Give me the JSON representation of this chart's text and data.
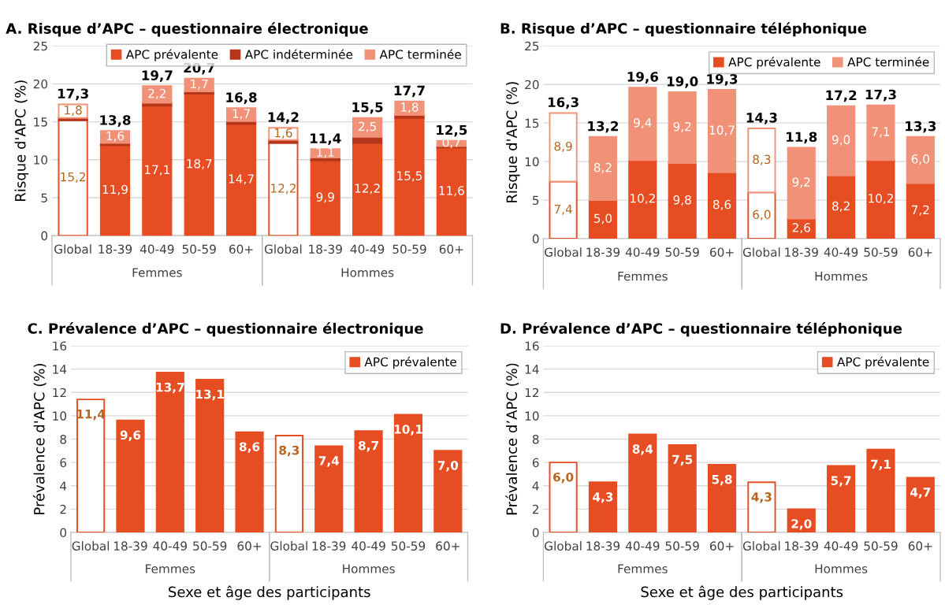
{
  "chart_data": [
    {
      "type": "bar",
      "stacked": true,
      "title": "A. Risque d’APC – questionnaire électronique",
      "ylabel": "Risque d'APC (%)",
      "categories": [
        "Global",
        "18-39",
        "40-49",
        "50-59",
        "60+",
        "Global",
        "18-39",
        "40-49",
        "50-59",
        "60+"
      ],
      "annotations": [
        "Femmes",
        "Hommes"
      ],
      "ylim": [
        0,
        25
      ],
      "yticks": [
        0,
        5,
        10,
        15,
        20,
        25
      ],
      "grid": "y",
      "legend": "top right",
      "series": [
        {
          "name": "APC prévalente",
          "color": "#e64d22",
          "colors": [
            "#ffffff",
            "#e64d22",
            "#e64d22",
            "#e64d22",
            "#e64d22",
            "#ffffff",
            "#e64d22",
            "#e64d22",
            "#e64d22",
            "#e64d22"
          ],
          "values": [
            15.2,
            11.9,
            17.1,
            18.7,
            14.7,
            12.2,
            9.9,
            12.2,
            15.5,
            11.6
          ],
          "value_labels": [
            "15,2",
            "11,9",
            "17,1",
            "18,7",
            "14,7",
            "12,2",
            "9,9",
            "12,2",
            "15,5",
            "11,6"
          ]
        },
        {
          "name": "APC indéterminée",
          "color": "#b5361a",
          "values": [
            0.3,
            0.3,
            0.4,
            0.3,
            0.4,
            0.4,
            0.4,
            0.8,
            0.4,
            0.2
          ]
        },
        {
          "name": "APC terminée",
          "color": "#f19278",
          "colors": [
            "#ffffff",
            "#f19278",
            "#f19278",
            "#f19278",
            "#f19278",
            "#ffffff",
            "#f19278",
            "#f19278",
            "#f19278",
            "#f19278"
          ],
          "values": [
            1.8,
            1.6,
            2.2,
            1.7,
            1.7,
            1.6,
            1.1,
            2.5,
            1.8,
            0.7
          ],
          "value_labels": [
            "1,8",
            "1,6",
            "2,2",
            "1,7",
            "1,7",
            "1,6",
            "1,1",
            "2,5",
            "1,8",
            "0,7"
          ]
        }
      ],
      "totals": [
        "17,3",
        "13,8",
        "19,7",
        "20,7",
        "16,8",
        "14,2",
        "11,4",
        "15,5",
        "17,7",
        "12,5"
      ]
    },
    {
      "type": "bar",
      "stacked": true,
      "title": "B. Risque d’APC – questionnaire téléphonique",
      "ylabel": "Risque d'APC (%)",
      "categories": [
        "Global",
        "18-39",
        "40-49",
        "50-59",
        "60+",
        "Global",
        "18-39",
        "40-49",
        "50-59",
        "60+"
      ],
      "annotations": [
        "Femmes",
        "Hommes"
      ],
      "ylim": [
        0,
        25
      ],
      "yticks": [
        0,
        5,
        10,
        15,
        20,
        25
      ],
      "grid": "y",
      "legend": "top right",
      "series": [
        {
          "name": "APC prévalente",
          "color": "#e64d22",
          "colors": [
            "#ffffff",
            "#e64d22",
            "#e64d22",
            "#e64d22",
            "#e64d22",
            "#ffffff",
            "#e64d22",
            "#e64d22",
            "#e64d22",
            "#e64d22"
          ],
          "values": [
            7.4,
            5.0,
            10.2,
            9.8,
            8.6,
            6.0,
            2.6,
            8.2,
            10.2,
            7.2
          ],
          "value_labels": [
            "7,4",
            "5,0",
            "10,2",
            "9,8",
            "8,6",
            "6,0",
            "2,6",
            "8,2",
            "10,2",
            "7,2"
          ]
        },
        {
          "name": "APC terminée",
          "color": "#f19278",
          "colors": [
            "#ffffff",
            "#f19278",
            "#f19278",
            "#f19278",
            "#f19278",
            "#ffffff",
            "#f19278",
            "#f19278",
            "#f19278",
            "#f19278"
          ],
          "values": [
            8.9,
            8.2,
            9.4,
            9.2,
            10.7,
            8.3,
            9.2,
            9.0,
            7.1,
            6.0
          ],
          "value_labels": [
            "8,9",
            "8,2",
            "9,4",
            "9,2",
            "10,7",
            "8,3",
            "9,2",
            "9,0",
            "7,1",
            "6,0"
          ]
        }
      ],
      "totals": [
        "16,3",
        "13,2",
        "19,6",
        "19,0",
        "19,3",
        "14,3",
        "11,8",
        "17,2",
        "17,3",
        "13,3"
      ]
    },
    {
      "type": "bar",
      "title": "C. Prévalence d’APC – questionnaire électronique",
      "ylabel": "Prévalence d'APC (%)",
      "xlabel": "Sexe et âge des participants",
      "categories": [
        "Global",
        "18-39",
        "40-49",
        "50-59",
        "60+",
        "Global",
        "18-39",
        "40-49",
        "50-59",
        "60+"
      ],
      "annotations": [
        "Femmes",
        "Hommes"
      ],
      "ylim": [
        0,
        16
      ],
      "yticks": [
        0,
        2,
        4,
        6,
        8,
        10,
        12,
        14,
        16
      ],
      "grid": "y",
      "legend": "top right",
      "series": [
        {
          "name": "APC prévalente",
          "color": "#e64d22",
          "colors": [
            "#ffffff",
            "#e64d22",
            "#e64d22",
            "#e64d22",
            "#e64d22",
            "#ffffff",
            "#e64d22",
            "#e64d22",
            "#e64d22",
            "#e64d22"
          ],
          "values": [
            11.4,
            9.6,
            13.7,
            13.1,
            8.6,
            8.3,
            7.4,
            8.7,
            10.1,
            7.0
          ],
          "value_labels": [
            "11,4",
            "9,6",
            "13,7",
            "13,1",
            "8,6",
            "8,3",
            "7,4",
            "8,7",
            "10,1",
            "7,0"
          ]
        }
      ]
    },
    {
      "type": "bar",
      "title": "D. Prévalence d’APC – questionnaire téléphonique",
      "ylabel": "Prévalence d’APC (%)",
      "xlabel": "Sexe et âge des participants",
      "categories": [
        "Global",
        "18-39",
        "40-49",
        "50-59",
        "60+",
        "Global",
        "18-39",
        "40-49",
        "50-59",
        "60+"
      ],
      "annotations": [
        "Femmes",
        "Hommes"
      ],
      "ylim": [
        0,
        16
      ],
      "yticks": [
        0,
        2,
        4,
        6,
        8,
        10,
        12,
        14,
        16
      ],
      "grid": "y",
      "legend": "top right",
      "series": [
        {
          "name": "APC prévalente",
          "color": "#e64d22",
          "colors": [
            "#ffffff",
            "#e64d22",
            "#e64d22",
            "#e64d22",
            "#e64d22",
            "#ffffff",
            "#e64d22",
            "#e64d22",
            "#e64d22",
            "#e64d22"
          ],
          "values": [
            6.0,
            4.3,
            8.4,
            7.5,
            5.8,
            4.3,
            2.0,
            5.7,
            7.1,
            4.7
          ],
          "value_labels": [
            "6,0",
            "4,3",
            "8,4",
            "7,5",
            "5,8",
            "4,3",
            "2,0",
            "5,7",
            "7,1",
            "4,7"
          ]
        }
      ]
    }
  ]
}
